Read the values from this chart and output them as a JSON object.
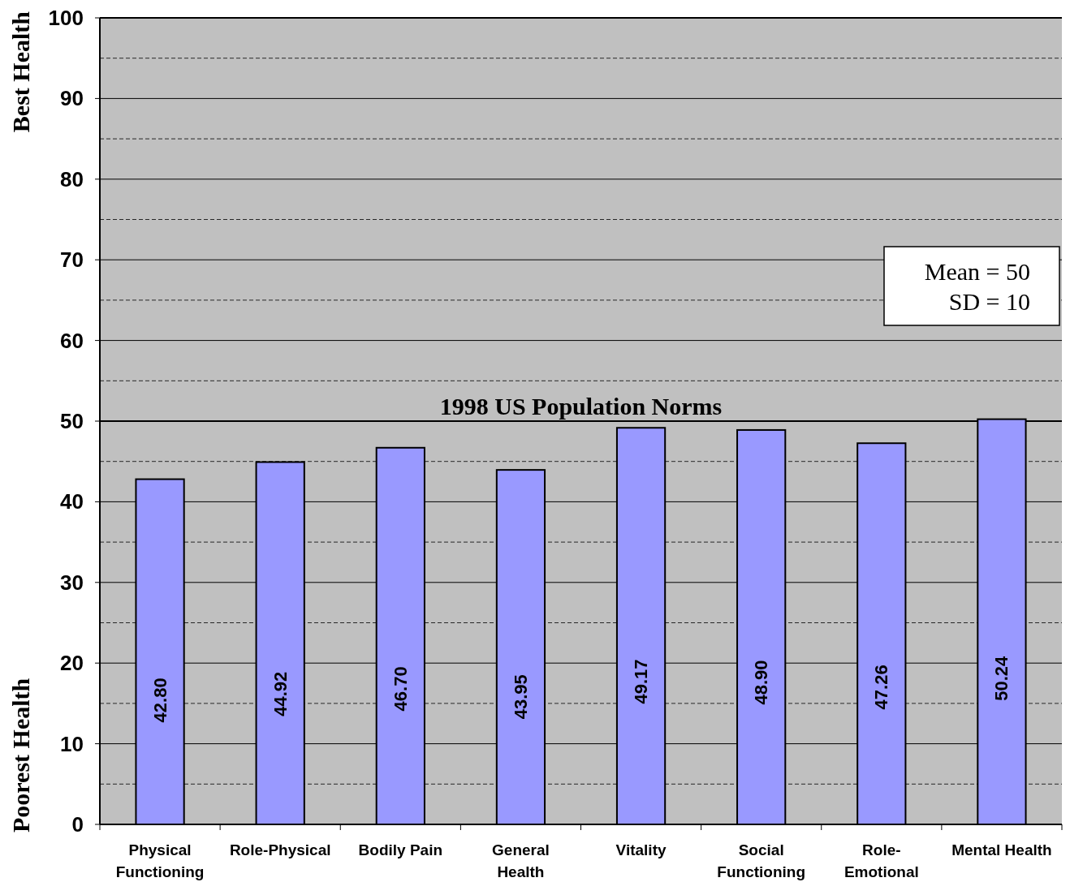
{
  "chart_data": {
    "type": "bar",
    "ylabel": "Poorest Health",
    "categories": [
      "Physical Functioning",
      "Role-Physical",
      "Bodily Pain",
      "General Health",
      "Vitality",
      "Social Functioning",
      "Role-Emotional",
      "Mental Health"
    ],
    "values": [
      42.8,
      44.92,
      46.7,
      43.95,
      49.17,
      48.9,
      47.26,
      50.24
    ],
    "color": "#9999ff",
    "value_labels": [
      "42.80",
      "44.92",
      "46.70",
      "43.95",
      "49.17",
      "48.90",
      "47.26",
      "50.24"
    ],
    "ylim": [
      0,
      100
    ],
    "yticks": [
      0,
      {
        "value": 5,
        "label": null
      },
      10,
      {
        "value": 15,
        "label": null
      },
      20,
      {
        "value": 25,
        "label": null
      },
      30,
      {
        "value": 35,
        "label": null
      },
      40,
      {
        "value": 45,
        "label": null
      },
      50,
      {
        "value": 55,
        "label": null
      },
      60,
      {
        "value": 65,
        "label": null
      },
      70,
      {
        "value": 75,
        "label": null
      },
      80,
      {
        "value": 85,
        "label": null
      },
      90,
      {
        "value": 95,
        "label": null
      },
      100
    ],
    "grid": "y",
    "ref_lines": [
      {
        "axis": "y",
        "value": 50,
        "label": "1998 US Population Norms",
        "color": "#000000"
      }
    ],
    "annotations": [
      "Best Health",
      "Mean = 50",
      "SD = 10"
    ]
  }
}
